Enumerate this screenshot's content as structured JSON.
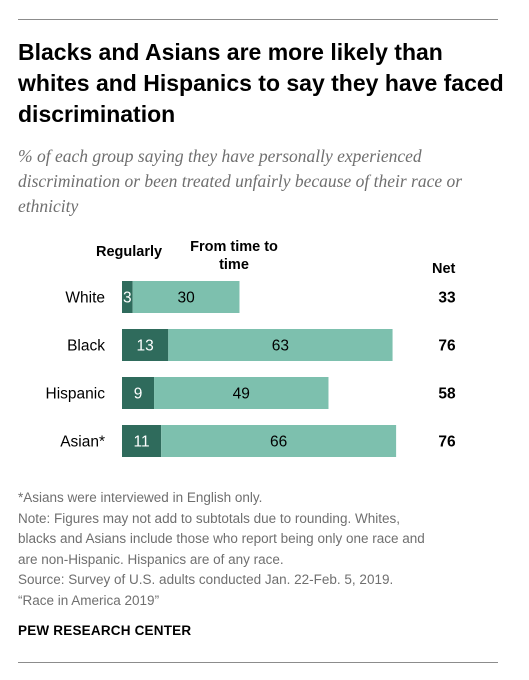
{
  "title": "Blacks and Asians are more likely than whites and Hispanics to say they have faced discrimination",
  "subtitle": "% of each group saying they have personally experienced discrimination or been treated unfairly because of their race or ethnicity",
  "chart_data": {
    "type": "bar",
    "orientation": "horizontal",
    "stacked": true,
    "categories": [
      "White",
      "Black",
      "Hispanic",
      "Asian*"
    ],
    "series": [
      {
        "name": "Regularly",
        "values": [
          3,
          13,
          9,
          11
        ],
        "color": "#2f6b5c"
      },
      {
        "name": "From time to time",
        "values": [
          30,
          63,
          49,
          66
        ],
        "color": "#7dc0ae"
      }
    ],
    "net_label": "Net",
    "net": [
      33,
      76,
      58,
      76
    ],
    "xlim": [
      0,
      100
    ],
    "grid": false,
    "legend": "column headers above bars"
  },
  "notes": [
    "*Asians were interviewed in English only.",
    "Note: Figures may not add to subtotals due to rounding. Whites,",
    "blacks and Asians include those who report being only one race and",
    "are non-Hispanic. Hispanics are of any race.",
    "Source: Survey of U.S. adults conducted Jan. 22-Feb. 5, 2019.",
    "“Race in America 2019”"
  ],
  "source_logo": "PEW RESEARCH CENTER"
}
